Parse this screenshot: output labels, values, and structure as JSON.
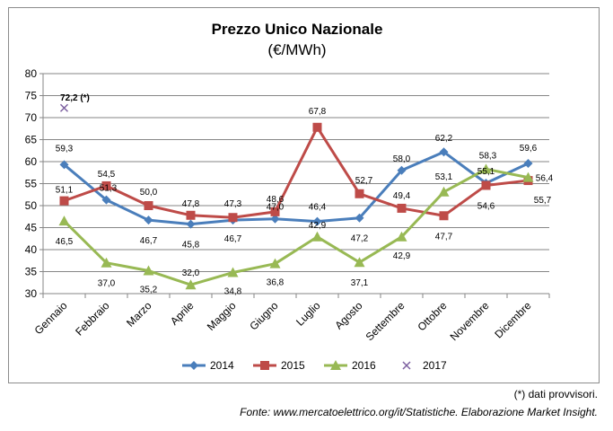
{
  "chart_data": {
    "type": "line",
    "title": "Prezzo Unico Nazionale",
    "subtitle": "(€/MWh)",
    "categories": [
      "Gennaio",
      "Febbraio",
      "Marzo",
      "Aprile",
      "Maggio",
      "Giugno",
      "Luglio",
      "Agosto",
      "Settembre",
      "Ottobre",
      "Novembre",
      "Dicembre"
    ],
    "ylim": [
      30,
      80
    ],
    "yticks": [
      30,
      35,
      40,
      45,
      50,
      55,
      60,
      65,
      70,
      75,
      80
    ],
    "grid": true,
    "legend_position": "bottom",
    "series": [
      {
        "name": "2014",
        "color": "#4a7ebb",
        "marker": "diamond",
        "values": [
          59.3,
          51.3,
          46.7,
          45.8,
          46.7,
          47.0,
          46.4,
          47.2,
          58.0,
          62.2,
          55.1,
          59.6
        ],
        "labels": [
          "59,3",
          "51,3",
          "46,7",
          "45,8",
          "46,7",
          "47,0",
          "46,4",
          "47,2",
          "58,0",
          "62,2",
          "55,1",
          "59,6"
        ]
      },
      {
        "name": "2015",
        "color": "#be4b48",
        "marker": "square",
        "values": [
          51.1,
          54.5,
          50.0,
          47.8,
          47.3,
          48.6,
          67.8,
          52.7,
          49.4,
          47.7,
          54.6,
          55.7
        ],
        "labels": [
          "51,1",
          "54,5",
          "50,0",
          "47,8",
          "47,3",
          "48,6",
          "67,8",
          "52,7",
          "49,4",
          "47,7",
          "54,6",
          "55,7"
        ]
      },
      {
        "name": "2016",
        "color": "#98b954",
        "marker": "triangle",
        "values": [
          46.5,
          37.0,
          35.2,
          32.0,
          34.8,
          36.8,
          42.9,
          37.1,
          42.9,
          53.1,
          58.3,
          56.4
        ],
        "labels": [
          "46,5",
          "37,0",
          "35,2",
          "32,0",
          "34,8",
          "36,8",
          "42,9",
          "37,1",
          "42,9",
          "53,1",
          "58,3",
          "56,4"
        ]
      },
      {
        "name": "2017",
        "color": "#7d60a0",
        "marker": "x",
        "values": [
          72.2,
          null,
          null,
          null,
          null,
          null,
          null,
          null,
          null,
          null,
          null,
          null
        ],
        "labels": [
          "72,2 (*)",
          "",
          "",
          "",
          "",
          "",
          "",
          "",
          "",
          "",
          "",
          ""
        ]
      }
    ]
  },
  "note": "(*) dati provvisori.",
  "source": "Fonte: www.mercatoelettrico.org/it/Statistiche. Elaborazione Market Insight."
}
